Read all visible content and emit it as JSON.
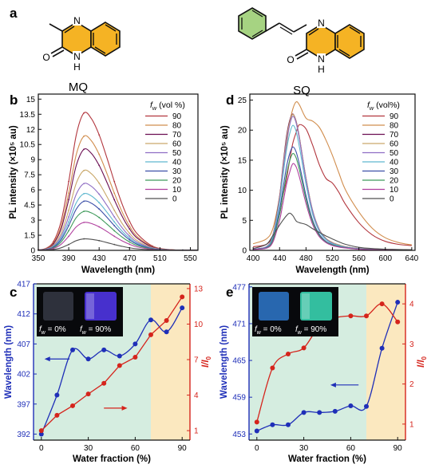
{
  "panel_letters": {
    "a": "a",
    "b": "b",
    "c": "c",
    "d": "d",
    "e": "e"
  },
  "structures": {
    "left_name": "MQ",
    "right_name": "SQ",
    "atom_N": "N",
    "atom_O": "O",
    "atom_H": "H",
    "ring_color": "#f5b324",
    "phenyl_color": "#a6d382"
  },
  "chart_data": [
    {
      "id": "b",
      "type": "line",
      "xlabel": "Wavelength (nm)",
      "ylabel": "PL intensity (×10⁵ au)",
      "xlim": [
        350,
        560
      ],
      "ylim": [
        0,
        15.5
      ],
      "xticks": [
        350,
        390,
        430,
        470,
        510,
        550
      ],
      "yticks": [
        0,
        1.5,
        3,
        4.5,
        6,
        7.5,
        9,
        10.5,
        12,
        13.5,
        15
      ],
      "ytick_labels": [
        "0",
        "1.5",
        "3",
        "4.5",
        "6",
        "7.5",
        "9",
        "10.5",
        "12",
        "13.5",
        "15"
      ],
      "legend_title": "fw (vol %)",
      "legend_title_main": "f",
      "legend_title_sub": "w",
      "legend_title_rest": " (vol %)",
      "peak_x": 410,
      "series": [
        {
          "name": "90",
          "color": "#b2363e",
          "values": [
            0.05,
            0.35,
            2.6,
            9.0,
            13.4,
            13.6,
            11.6,
            8.3,
            5.0,
            2.6,
            1.3,
            0.55,
            0.2
          ]
        },
        {
          "name": "80",
          "color": "#d18d4d",
          "values": [
            0.05,
            0.3,
            2.2,
            7.5,
            11.2,
            11.3,
            9.6,
            6.9,
            4.2,
            2.2,
            1.1,
            0.45,
            0.15
          ]
        },
        {
          "name": "70",
          "color": "#6b0e52",
          "values": [
            0.05,
            0.27,
            1.95,
            6.7,
            9.9,
            10.0,
            8.5,
            6.1,
            3.7,
            1.9,
            0.95,
            0.4,
            0.14
          ]
        },
        {
          "name": "60",
          "color": "#c9a86a",
          "values": [
            0.05,
            0.22,
            1.6,
            5.3,
            7.8,
            7.9,
            6.7,
            4.8,
            2.9,
            1.5,
            0.75,
            0.3,
            0.1
          ]
        },
        {
          "name": "50",
          "color": "#8f6ec4",
          "values": [
            0.04,
            0.18,
            1.3,
            4.4,
            6.5,
            6.6,
            5.6,
            4.0,
            2.4,
            1.25,
            0.62,
            0.26,
            0.09
          ]
        },
        {
          "name": "40",
          "color": "#5fb8cf",
          "values": [
            0.04,
            0.15,
            1.1,
            3.7,
            5.5,
            5.6,
            4.8,
            3.4,
            2.05,
            1.05,
            0.52,
            0.22,
            0.08
          ]
        },
        {
          "name": "30",
          "color": "#3c4fa8",
          "values": [
            0.03,
            0.13,
            0.95,
            3.2,
            4.8,
            4.85,
            4.1,
            2.95,
            1.8,
            0.92,
            0.46,
            0.19,
            0.07
          ]
        },
        {
          "name": "20",
          "color": "#3f9a5a",
          "values": [
            0.03,
            0.11,
            0.8,
            2.6,
            3.8,
            3.85,
            3.25,
            2.35,
            1.42,
            0.73,
            0.36,
            0.15,
            0.05
          ]
        },
        {
          "name": "10",
          "color": "#b03f9e",
          "values": [
            0.02,
            0.08,
            0.58,
            1.85,
            2.7,
            2.75,
            2.35,
            1.7,
            1.02,
            0.52,
            0.26,
            0.11,
            0.04
          ]
        },
        {
          "name": "0",
          "color": "#505050",
          "values": [
            0.01,
            0.04,
            0.28,
            0.8,
            1.12,
            1.12,
            0.95,
            0.68,
            0.42,
            0.22,
            0.11,
            0.05,
            0.02
          ]
        }
      ],
      "x": [
        350,
        370,
        380,
        390,
        400,
        410,
        420,
        430,
        440,
        450,
        460,
        470,
        480
      ]
    },
    {
      "id": "d",
      "type": "line",
      "xlabel": "Wavelength (nm)",
      "ylabel": "PL intensity (×10⁵ au)",
      "xlim": [
        395,
        645
      ],
      "ylim": [
        0,
        26
      ],
      "xticks": [
        400,
        440,
        480,
        520,
        560,
        600,
        640
      ],
      "yticks": [
        0,
        5,
        10,
        15,
        20,
        25
      ],
      "ytick_labels": [
        "0",
        "5",
        "10",
        "15",
        "20",
        "25"
      ],
      "legend_title": "fw (vol%)",
      "legend_title_main": "f",
      "legend_title_sub": "w",
      "legend_title_rest": " (vol%)",
      "x": [
        400,
        420,
        430,
        440,
        445,
        450,
        455,
        460,
        465,
        470,
        480,
        490,
        500,
        510,
        520,
        530,
        540,
        560,
        580,
        600,
        620,
        640
      ],
      "series": [
        {
          "name": "90",
          "color": "#b2363e",
          "values": [
            0.6,
            1.0,
            2.4,
            6.0,
            9.0,
            11.5,
            14.8,
            17.8,
            19.6,
            20.9,
            20.2,
            17.5,
            14.3,
            12.0,
            11.2,
            9.6,
            7.6,
            4.6,
            2.6,
            1.5,
            1.0,
            0.8
          ]
        },
        {
          "name": "80",
          "color": "#d18d4d",
          "values": [
            1.1,
            1.9,
            3.7,
            9.0,
            13.5,
            17.0,
            21.0,
            23.5,
            24.7,
            24.2,
            22.0,
            21.5,
            20.5,
            18.4,
            15.8,
            12.8,
            10.0,
            6.4,
            3.7,
            2.1,
            1.3,
            0.9
          ]
        },
        {
          "name": "70",
          "color": "#6b0e52",
          "values": [
            0.2,
            0.6,
            2.6,
            9.0,
            14.0,
            18.6,
            21.5,
            22.7,
            21.5,
            18.8,
            12.0,
            6.6,
            3.5,
            2.0,
            1.3,
            0.9,
            0.6,
            0.3,
            0.2,
            0.1,
            0.1,
            0.05
          ]
        },
        {
          "name": "60",
          "color": "#c9a86a",
          "values": [
            0.2,
            0.6,
            2.5,
            8.8,
            13.7,
            18.2,
            21.2,
            22.6,
            21.4,
            18.7,
            12.0,
            6.6,
            3.5,
            2.0,
            1.3,
            0.9,
            0.6,
            0.3,
            0.2,
            0.1,
            0.1,
            0.05
          ]
        },
        {
          "name": "50",
          "color": "#8f6ec4",
          "values": [
            0.2,
            0.6,
            2.4,
            8.5,
            13.2,
            17.6,
            20.7,
            22.3,
            21.2,
            18.5,
            11.8,
            6.5,
            3.4,
            1.9,
            1.2,
            0.8,
            0.55,
            0.28,
            0.18,
            0.1,
            0.08,
            0.05
          ]
        },
        {
          "name": "40",
          "color": "#5fb8cf",
          "values": [
            0.2,
            0.5,
            2.3,
            8.0,
            12.3,
            16.3,
            19.3,
            20.8,
            19.8,
            17.2,
            11.0,
            6.0,
            3.2,
            1.8,
            1.1,
            0.8,
            0.5,
            0.27,
            0.17,
            0.1,
            0.07,
            0.05
          ]
        },
        {
          "name": "30",
          "color": "#3c4fa8",
          "values": [
            0.2,
            0.45,
            1.9,
            6.8,
            10.2,
            13.6,
            16.0,
            17.2,
            16.4,
            14.3,
            9.1,
            5.0,
            2.7,
            1.5,
            0.95,
            0.65,
            0.45,
            0.22,
            0.15,
            0.09,
            0.06,
            0.04
          ]
        },
        {
          "name": "20",
          "color": "#3f9a5a",
          "values": [
            0.15,
            0.4,
            1.7,
            6.0,
            9.2,
            12.3,
            14.8,
            16.1,
            15.4,
            13.4,
            8.5,
            4.7,
            2.5,
            1.4,
            0.9,
            0.6,
            0.42,
            0.2,
            0.14,
            0.08,
            0.06,
            0.04
          ]
        },
        {
          "name": "10",
          "color": "#b03f9e",
          "values": [
            0.15,
            0.35,
            1.4,
            5.0,
            7.8,
            10.7,
            12.9,
            14.4,
            13.9,
            12.2,
            7.8,
            4.3,
            2.3,
            1.3,
            0.8,
            0.55,
            0.38,
            0.18,
            0.12,
            0.07,
            0.05,
            0.03
          ]
        },
        {
          "name": "0",
          "color": "#505050",
          "values": [
            0.3,
            1.0,
            2.5,
            4.2,
            5.0,
            5.7,
            6.2,
            5.8,
            4.9,
            4.6,
            4.3,
            3.6,
            3.0,
            2.4,
            1.9,
            1.4,
            1.0,
            0.5,
            0.3,
            0.2,
            0.15,
            0.1
          ]
        }
      ]
    },
    {
      "id": "c",
      "type": "line",
      "xlabel": "Water fraction (%)",
      "ylabel_left": "Wavelength (nm)",
      "ylabel_right_main": "I/I",
      "ylabel_right_sub": "0",
      "x": [
        0,
        10,
        20,
        30,
        40,
        50,
        60,
        70,
        80,
        90
      ],
      "xlim": [
        -5,
        95
      ],
      "xticks": [
        0,
        30,
        60,
        90
      ],
      "ylim_left": [
        391,
        417
      ],
      "yticks_left": [
        392,
        397,
        402,
        407,
        412,
        417
      ],
      "ylim_right": [
        0.2,
        13.4
      ],
      "yticks_right": [
        1,
        4,
        7,
        10,
        13
      ],
      "shade_split": 70,
      "shade_colors": {
        "left": "#d5ede0",
        "right": "#fbe8bf"
      },
      "left_color": "#1f2fb8",
      "right_color": "#d5241c",
      "series": [
        {
          "name": "wavelength",
          "axis": "left",
          "values": [
            392,
            398.5,
            406,
            404.5,
            406,
            405,
            407,
            411,
            409,
            413
          ]
        },
        {
          "name": "I/I0",
          "axis": "right",
          "values": [
            1,
            2.3,
            3.1,
            4.1,
            5.0,
            6.5,
            7.2,
            9.1,
            10.3,
            12.3
          ]
        }
      ],
      "inset_labels": [
        {
          "main": "f",
          "sub": "w",
          "rest": " = 0%"
        },
        {
          "main": "f",
          "sub": "w",
          "rest": " = 90%"
        }
      ],
      "inset_colors": [
        "#30343f",
        "#4b33d8"
      ]
    },
    {
      "id": "e",
      "type": "line",
      "xlabel": "Water fraction (%)",
      "ylabel_left": "Wavelength (nm)",
      "ylabel_right_main": "I/I",
      "ylabel_right_sub": "0",
      "x": [
        0,
        10,
        20,
        30,
        40,
        50,
        60,
        70,
        80,
        90
      ],
      "xlim": [
        -5,
        95
      ],
      "xticks": [
        0,
        30,
        60,
        90
      ],
      "ylim_left": [
        452,
        477.5
      ],
      "yticks_left": [
        453,
        459,
        465,
        471,
        477
      ],
      "ylim_right": [
        0.6,
        4.5
      ],
      "yticks_right": [
        1,
        2,
        3,
        4
      ],
      "shade_split": 70,
      "shade_colors": {
        "left": "#d5ede0",
        "right": "#fbe8bf"
      },
      "left_color": "#1f2fb8",
      "right_color": "#d5241c",
      "series": [
        {
          "name": "wavelength",
          "axis": "left",
          "values": [
            453.5,
            454.5,
            454.5,
            456.5,
            456.5,
            456.7,
            457.6,
            457.5,
            467,
            474.5
          ]
        },
        {
          "name": "I/I0",
          "axis": "right",
          "values": [
            1.05,
            2.4,
            2.75,
            2.9,
            3.45,
            3.65,
            3.7,
            3.7,
            4.0,
            3.55
          ]
        }
      ],
      "inset_labels": [
        {
          "main": "f",
          "sub": "w",
          "rest": " = 0%"
        },
        {
          "main": "f",
          "sub": "w",
          "rest": " = 90%"
        }
      ],
      "inset_colors": [
        "#2a6db8",
        "#36c8a8"
      ]
    }
  ]
}
